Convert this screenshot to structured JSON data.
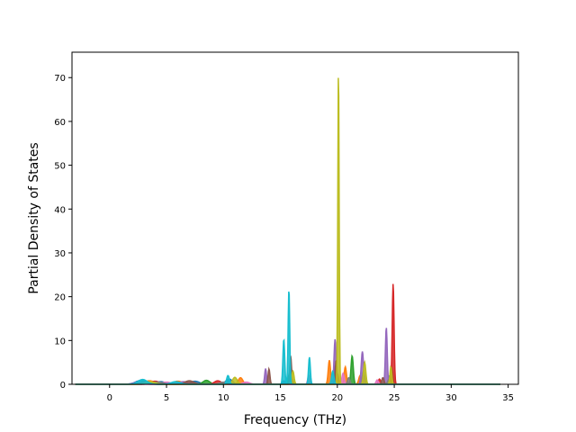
{
  "chart_data": {
    "type": "area",
    "title": "",
    "xlabel": "Frequency (THz)",
    "ylabel": "Partial Density of States",
    "xlim": [
      -3.3,
      35.9
    ],
    "ylim": [
      0,
      75.8
    ],
    "xticks": [
      0,
      5,
      10,
      15,
      20,
      25,
      30,
      35
    ],
    "xtick_labels": [
      "0",
      "5",
      "10",
      "15",
      "20",
      "25",
      "30",
      "35"
    ],
    "yticks": [
      0,
      10,
      20,
      30,
      40,
      50,
      60,
      70
    ],
    "ytick_labels": [
      "0",
      "10",
      "20",
      "30",
      "40",
      "50",
      "60",
      "70"
    ],
    "x_range": [
      -3,
      34.3
    ],
    "grid": false,
    "legend": "none",
    "colors": [
      "#1f77b4",
      "#ff7f0e",
      "#2ca02c",
      "#d62728",
      "#9467bd",
      "#8c564b",
      "#e377c2",
      "#7f7f7f",
      "#bcbd22",
      "#17becf"
    ],
    "series": [
      {
        "peaks": [
          [
            2.8,
            0.9,
            0.5
          ],
          [
            4.5,
            0.6,
            0.4
          ],
          [
            7.5,
            0.7,
            0.4
          ],
          [
            10.5,
            1.2,
            0.3
          ],
          [
            15.3,
            0.8,
            0.12
          ],
          [
            19.8,
            4.0,
            0.1
          ],
          [
            24.6,
            2.0,
            0.1
          ]
        ]
      },
      {
        "peaks": [
          [
            3.5,
            0.8,
            0.5
          ],
          [
            6.0,
            0.7,
            0.4
          ],
          [
            11.5,
            1.5,
            0.2
          ],
          [
            19.3,
            5.5,
            0.1
          ],
          [
            20.7,
            4.0,
            0.1
          ],
          [
            22.0,
            2.0,
            0.12
          ]
        ]
      },
      {
        "peaks": [
          [
            3.0,
            0.6,
            0.4
          ],
          [
            8.5,
            0.9,
            0.3
          ],
          [
            15.8,
            2.5,
            0.1
          ],
          [
            21.3,
            6.5,
            0.1
          ],
          [
            22.3,
            3.0,
            0.1
          ],
          [
            24.8,
            3.5,
            0.08
          ]
        ]
      },
      {
        "peaks": [
          [
            4.0,
            0.7,
            0.4
          ],
          [
            9.5,
            0.8,
            0.3
          ],
          [
            20.0,
            2.5,
            0.1
          ],
          [
            24.9,
            23.0,
            0.08
          ],
          [
            23.7,
            1.2,
            0.1
          ]
        ]
      },
      {
        "peaks": [
          [
            2.5,
            0.5,
            0.4
          ],
          [
            6.5,
            0.6,
            0.4
          ],
          [
            13.7,
            3.6,
            0.08
          ],
          [
            19.8,
            10.3,
            0.09
          ],
          [
            22.2,
            7.5,
            0.1
          ],
          [
            24.3,
            13.0,
            0.08
          ]
        ]
      },
      {
        "peaks": [
          [
            3.2,
            0.6,
            0.4
          ],
          [
            7.0,
            0.8,
            0.4
          ],
          [
            14.0,
            3.5,
            0.08
          ],
          [
            15.9,
            6.5,
            0.08
          ],
          [
            19.9,
            5.5,
            0.08
          ],
          [
            24.0,
            1.5,
            0.1
          ]
        ]
      },
      {
        "peaks": [
          [
            5.0,
            0.5,
            0.4
          ],
          [
            12.0,
            0.5,
            0.3
          ],
          [
            17.5,
            2.0,
            0.1
          ],
          [
            20.5,
            2.5,
            0.1
          ],
          [
            23.5,
            1.0,
            0.1
          ]
        ]
      },
      {
        "peaks": [
          [
            4.2,
            0.5,
            0.5
          ],
          [
            10.0,
            0.5,
            0.3
          ],
          [
            16.0,
            1.5,
            0.1
          ],
          [
            21.0,
            1.5,
            0.1
          ],
          [
            24.5,
            1.0,
            0.1
          ]
        ]
      },
      {
        "peaks": [
          [
            3.6,
            0.6,
            0.4
          ],
          [
            11.0,
            1.6,
            0.2
          ],
          [
            16.1,
            3.0,
            0.1
          ],
          [
            20.1,
            72.3,
            0.06
          ],
          [
            22.4,
            5.0,
            0.1
          ],
          [
            24.7,
            4.0,
            0.08
          ]
        ]
      },
      {
        "peaks": [
          [
            2.9,
            1.1,
            0.4
          ],
          [
            5.8,
            0.6,
            0.4
          ],
          [
            10.4,
            2.0,
            0.12
          ],
          [
            15.3,
            10.3,
            0.08
          ],
          [
            15.75,
            21.8,
            0.07
          ],
          [
            17.55,
            6.2,
            0.08
          ],
          [
            19.6,
            3.0,
            0.1
          ]
        ]
      }
    ]
  }
}
